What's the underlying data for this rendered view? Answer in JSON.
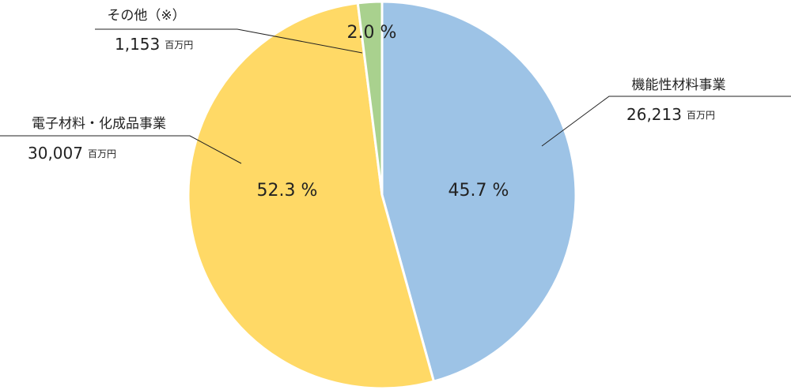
{
  "chart_data": {
    "type": "pie",
    "categories": [
      "機能性材料事業",
      "電子材料・化成品事業",
      "その他（※）"
    ],
    "values": [
      45.7,
      52.3,
      2.0
    ],
    "value_labels": [
      "45.7 %",
      "52.3 %",
      "2.0 %"
    ],
    "colors": [
      "#9dc3e6",
      "#ffd966",
      "#a9d18e"
    ],
    "amounts": [
      {
        "value": 26213,
        "label": "26,213"
      },
      {
        "value": 30007,
        "label": "30,007"
      },
      {
        "value": 1153,
        "label": "1,153"
      }
    ],
    "unit": "百万円"
  }
}
